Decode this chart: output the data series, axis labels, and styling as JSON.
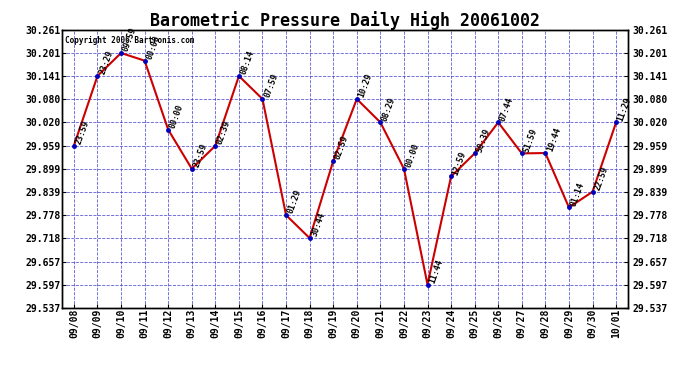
{
  "title": "Barometric Pressure Daily High 20061002",
  "copyright": "Copyright 2006 Bartronis.com",
  "ylim": [
    29.537,
    30.261
  ],
  "yticks": [
    29.537,
    29.597,
    29.657,
    29.718,
    29.778,
    29.839,
    29.899,
    29.959,
    30.02,
    30.08,
    30.141,
    30.201,
    30.261
  ],
  "dates": [
    "09/08",
    "09/09",
    "09/10",
    "09/11",
    "09/12",
    "09/13",
    "09/14",
    "09/15",
    "09/16",
    "09/17",
    "09/18",
    "09/19",
    "09/20",
    "09/21",
    "09/22",
    "09/23",
    "09/24",
    "09/25",
    "09/26",
    "09/27",
    "09/28",
    "09/29",
    "09/30",
    "10/01"
  ],
  "values": [
    29.959,
    30.141,
    30.201,
    30.181,
    30.001,
    29.899,
    29.959,
    30.141,
    30.081,
    29.778,
    29.718,
    29.919,
    30.081,
    30.02,
    29.899,
    29.597,
    29.879,
    29.939,
    30.02,
    29.939,
    29.94,
    29.798,
    29.839,
    30.02
  ],
  "time_labels": [
    "23:59",
    "23:29",
    "09:59",
    "00:00",
    "00:00",
    "23:59",
    "02:39",
    "08:14",
    "07:59",
    "01:29",
    "30:44",
    "02:59",
    "10:29",
    "08:29",
    "00:00",
    "11:44",
    "12:59",
    "50:39",
    "07:44",
    "51:59",
    "19:44",
    "01:14",
    "22:59",
    "11:29"
  ],
  "line_color": "#cc0000",
  "marker_color": "#0000bb",
  "bg_color": "#ffffff",
  "grid_color": "#3333cc",
  "title_fontsize": 12,
  "tick_fontsize": 7,
  "annot_fontsize": 6
}
